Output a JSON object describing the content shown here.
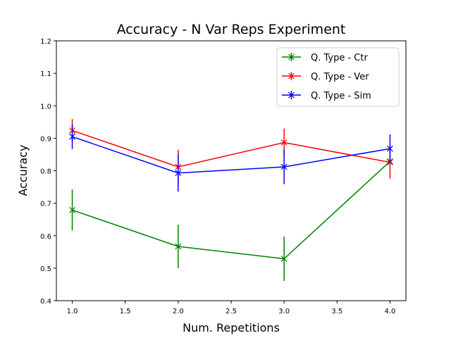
{
  "chart_data": {
    "type": "line",
    "title": "Accuracy - N Var Reps Experiment",
    "xlabel": "Num. Repetitions",
    "ylabel": "Accuracy",
    "xlim": [
      0.85,
      4.15
    ],
    "ylim": [
      0.4,
      1.2
    ],
    "xticks": [
      1.0,
      1.5,
      2.0,
      2.5,
      3.0,
      3.5,
      4.0
    ],
    "xtick_labels": [
      "1.0",
      "1.5",
      "2.0",
      "2.5",
      "3.0",
      "3.5",
      "4.0"
    ],
    "yticks": [
      0.4,
      0.5,
      0.6,
      0.7,
      0.8,
      0.9,
      1.0,
      1.1,
      1.2
    ],
    "ytick_labels": [
      "0.4",
      "0.5",
      "0.6",
      "0.7",
      "0.8",
      "0.9",
      "1.0",
      "1.1",
      "1.2"
    ],
    "legend_position": "top-right",
    "grid": false,
    "x": [
      1,
      2,
      3,
      4
    ],
    "series": [
      {
        "name": "Q. Type - Ctr",
        "color": "#008000",
        "values": [
          0.679,
          0.567,
          0.529,
          0.829
        ],
        "errors": [
          0.063,
          0.067,
          0.068,
          0.005
        ]
      },
      {
        "name": "Q. Type - Ver",
        "color": "#ff0000",
        "values": [
          0.924,
          0.812,
          0.887,
          0.826
        ],
        "errors": [
          0.035,
          0.052,
          0.043,
          0.05
        ]
      },
      {
        "name": "Q. Type - Sim",
        "color": "#0000ff",
        "values": [
          0.905,
          0.793,
          0.812,
          0.868
        ],
        "errors": [
          0.038,
          0.057,
          0.053,
          0.044
        ]
      }
    ]
  }
}
